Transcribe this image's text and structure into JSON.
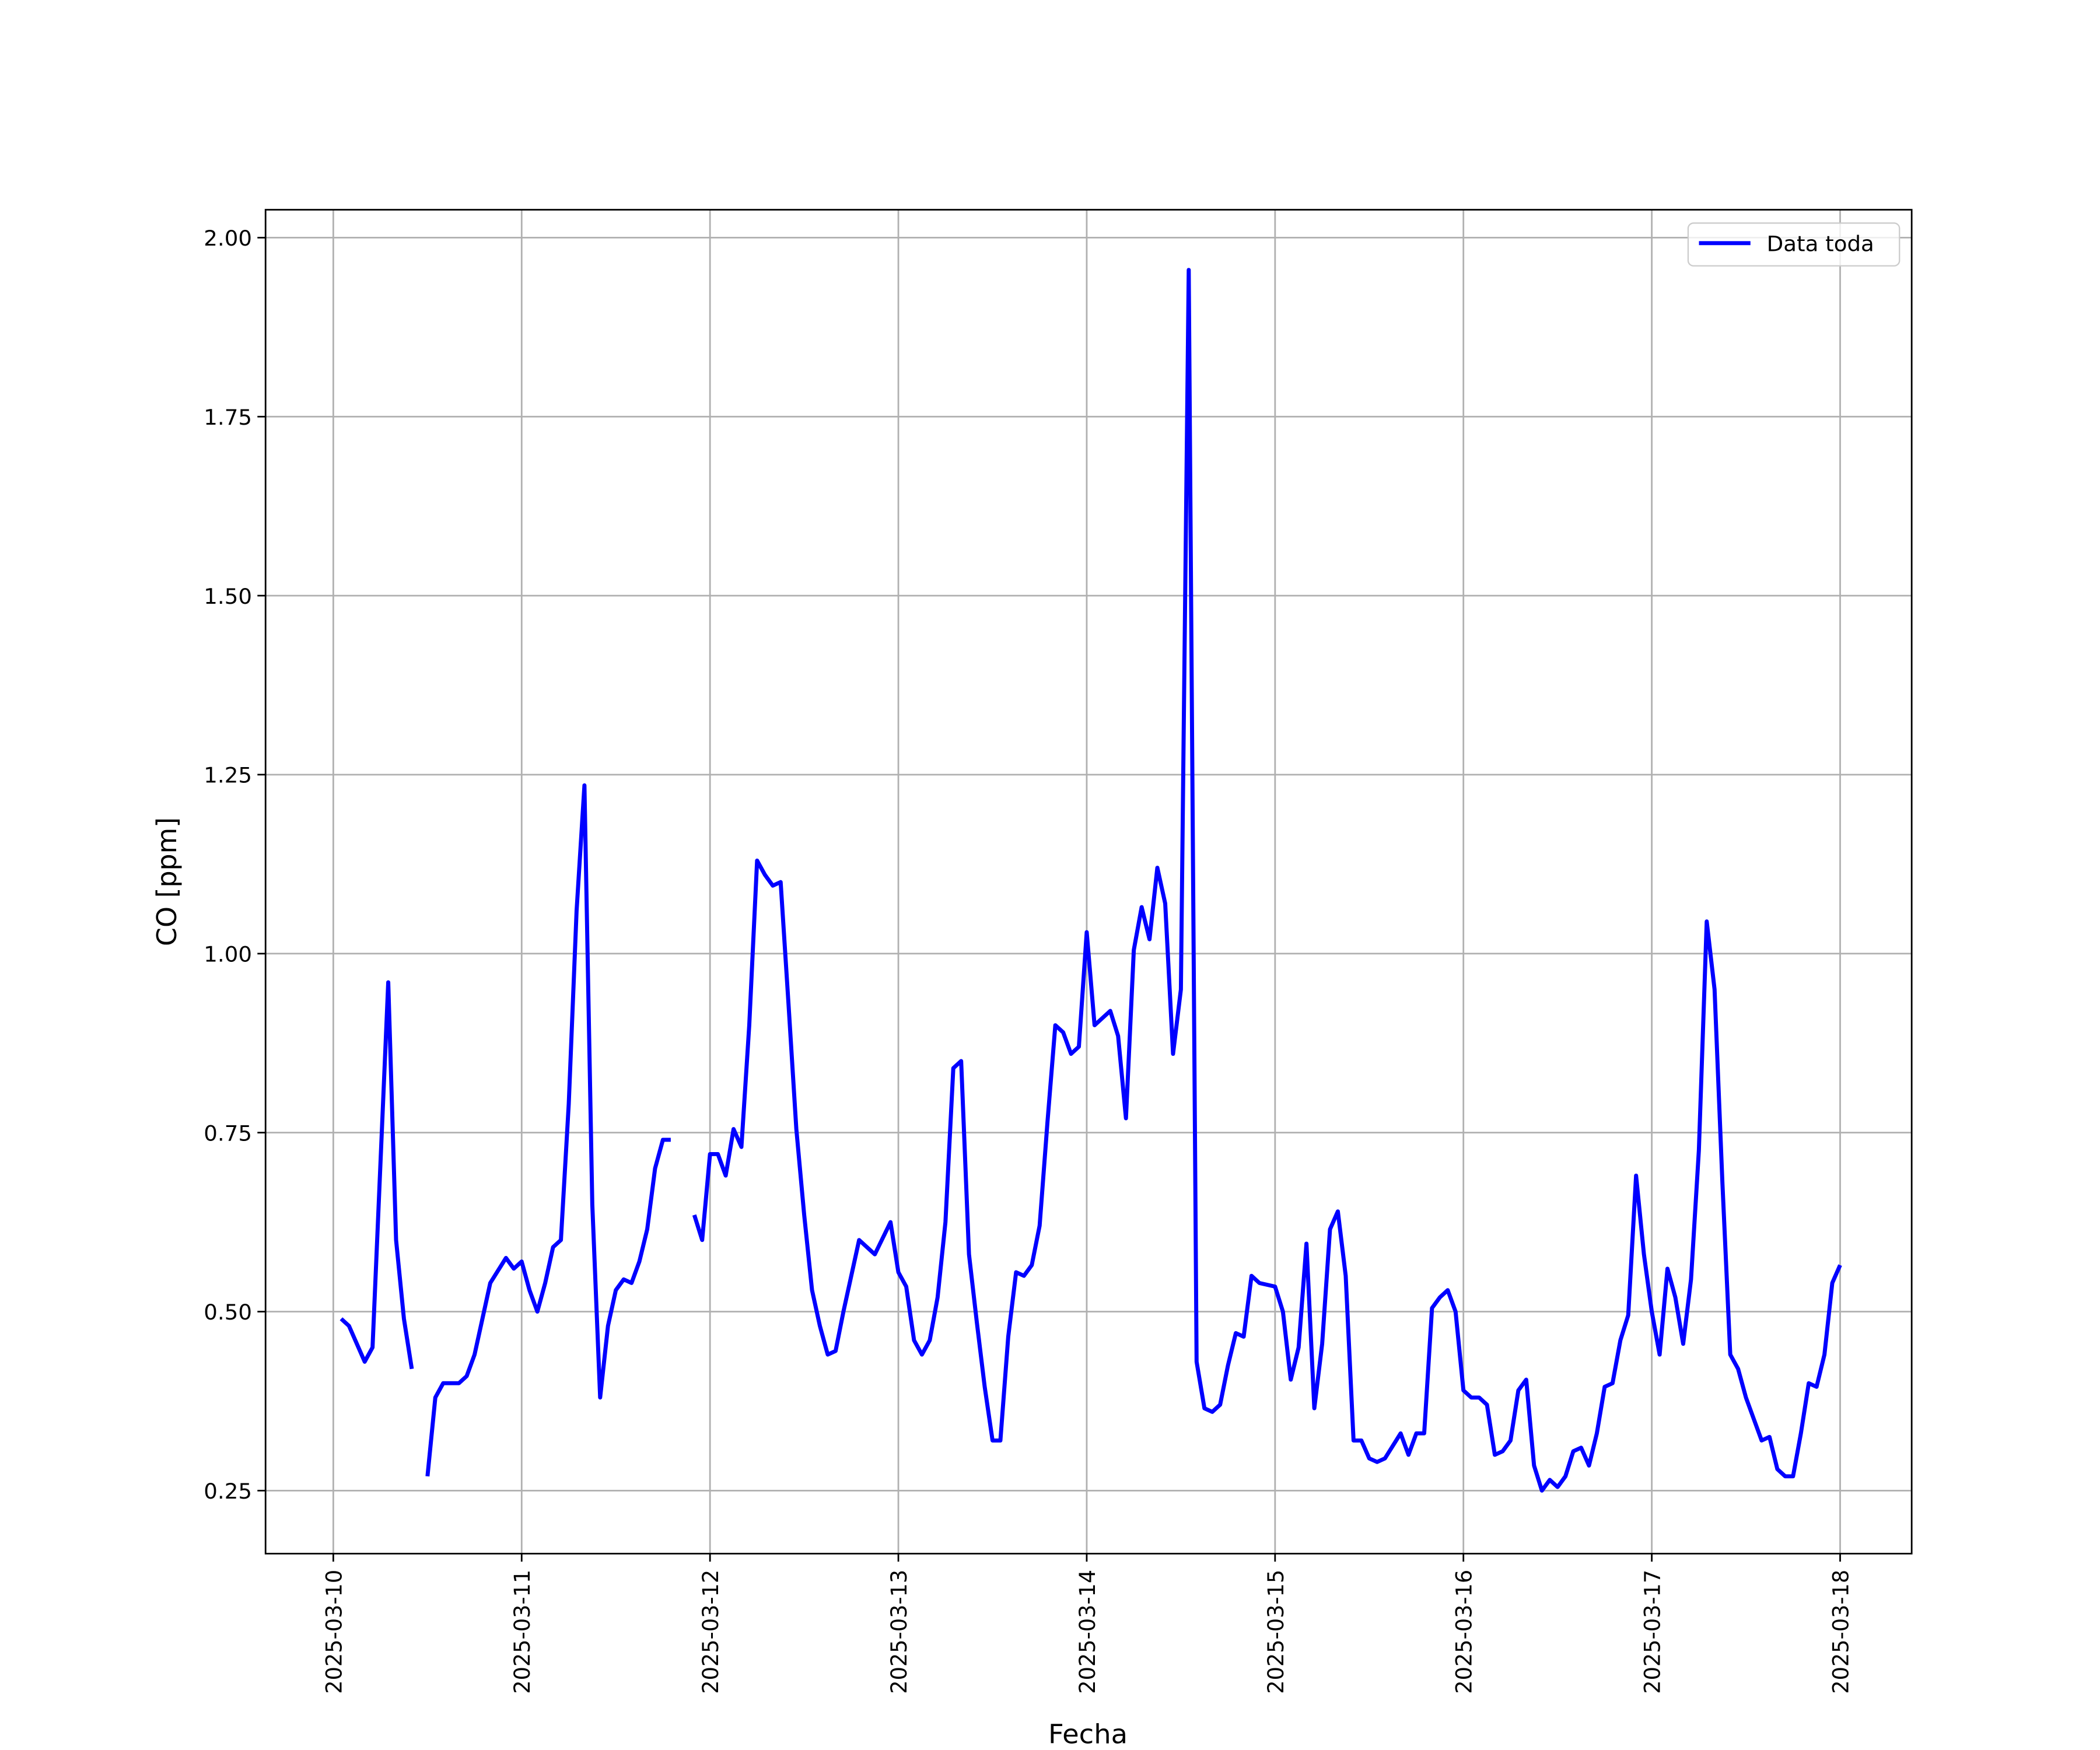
{
  "chart_data": {
    "type": "line",
    "x_label": "Fecha",
    "y_label": "CO [ppm]",
    "xlim": [
      "2025-03-09 15:22",
      "2025-03-18 09:07"
    ],
    "xticks": [
      "2025-03-10",
      "2025-03-11",
      "2025-03-12",
      "2025-03-13",
      "2025-03-14",
      "2025-03-15",
      "2025-03-16",
      "2025-03-17",
      "2025-03-18"
    ],
    "ylim": [
      0.162,
      2.039
    ],
    "yticks": [
      0.25,
      {
        "value": 0.5,
        "label": "0.50"
      },
      0.75,
      {
        "value": 1,
        "label": "1.00"
      },
      1.25,
      {
        "value": 1.5,
        "label": "1.50"
      },
      1.75,
      {
        "value": 2,
        "label": "2.00"
      }
    ],
    "grid": true,
    "legend": "upper right",
    "x": [
      "2025-03-10 01:00",
      "2025-03-10 02:00",
      "2025-03-10 04:00",
      "2025-03-10 05:00",
      "2025-03-10 07:00",
      "2025-03-10 08:00",
      "2025-03-10 09:00",
      "2025-03-10 10:00",
      "2025-03-10 11:00",
      "2025-03-10 12:00",
      "2025-03-10 13:00",
      "2025-03-10 14:00",
      "2025-03-10 15:00",
      "2025-03-10 16:00",
      "2025-03-10 17:00",
      "2025-03-10 18:00",
      "2025-03-10 20:00",
      "2025-03-10 22:00",
      "2025-03-10 23:00",
      "2025-03-11 00:00",
      "2025-03-11 01:00",
      "2025-03-11 02:00",
      "2025-03-11 03:00",
      "2025-03-11 04:00",
      "2025-03-11 05:00",
      "2025-03-11 06:00",
      "2025-03-11 07:00",
      "2025-03-11 08:00",
      "2025-03-11 09:00",
      "2025-03-11 10:00",
      "2025-03-11 11:00",
      "2025-03-11 12:00",
      "2025-03-11 13:00",
      "2025-03-11 14:00",
      "2025-03-11 15:00",
      "2025-03-11 16:00",
      "2025-03-11 17:00",
      "2025-03-11 18:00",
      "2025-03-11 19:00",
      "2025-03-11 20:00",
      "2025-03-11 22:00",
      "2025-03-11 23:00",
      "2025-03-12 00:00",
      "2025-03-12 01:00",
      "2025-03-12 02:00",
      "2025-03-12 03:00",
      "2025-03-12 04:00",
      "2025-03-12 05:00",
      "2025-03-12 06:00",
      "2025-03-12 07:00",
      "2025-03-12 08:00",
      "2025-03-12 09:00",
      "2025-03-12 10:00",
      "2025-03-12 11:00",
      "2025-03-12 12:00",
      "2025-03-12 13:00",
      "2025-03-12 14:00",
      "2025-03-12 15:00",
      "2025-03-12 16:00",
      "2025-03-12 17:00",
      "2025-03-12 19:00",
      "2025-03-12 21:00",
      "2025-03-12 23:00",
      "2025-03-13 00:00",
      "2025-03-13 01:00",
      "2025-03-13 02:00",
      "2025-03-13 03:00",
      "2025-03-13 04:00",
      "2025-03-13 05:00",
      "2025-03-13 06:00",
      "2025-03-13 07:00",
      "2025-03-13 08:00",
      "2025-03-13 09:00",
      "2025-03-13 10:00",
      "2025-03-13 11:00",
      "2025-03-13 12:00",
      "2025-03-13 13:00",
      "2025-03-13 14:00",
      "2025-03-13 15:00",
      "2025-03-13 16:00",
      "2025-03-13 17:00",
      "2025-03-13 18:00",
      "2025-03-13 19:00",
      "2025-03-13 20:00",
      "2025-03-13 21:00",
      "2025-03-13 22:00",
      "2025-03-13 23:00",
      "2025-03-14 00:00",
      "2025-03-14 01:00",
      "2025-03-14 02:00",
      "2025-03-14 03:00",
      "2025-03-14 04:00",
      "2025-03-14 05:00",
      "2025-03-14 06:00",
      "2025-03-14 07:00",
      "2025-03-14 08:00",
      "2025-03-14 09:00",
      "2025-03-14 10:00",
      "2025-03-14 11:00",
      "2025-03-14 12:00",
      "2025-03-14 13:00",
      "2025-03-14 14:00",
      "2025-03-14 15:00",
      "2025-03-14 16:00",
      "2025-03-14 17:00",
      "2025-03-14 18:00",
      "2025-03-14 19:00",
      "2025-03-14 20:00",
      "2025-03-14 21:00",
      "2025-03-14 22:00",
      "2025-03-15 00:00",
      "2025-03-15 01:00",
      "2025-03-15 02:00",
      "2025-03-15 03:00",
      "2025-03-15 04:00",
      "2025-03-15 05:00",
      "2025-03-15 06:00",
      "2025-03-15 07:00",
      "2025-03-15 08:00",
      "2025-03-15 09:00",
      "2025-03-15 10:00",
      "2025-03-15 11:00",
      "2025-03-15 12:00",
      "2025-03-15 13:00",
      "2025-03-15 14:00",
      "2025-03-15 16:00",
      "2025-03-15 17:00",
      "2025-03-15 18:00",
      "2025-03-15 19:00",
      "2025-03-15 20:00",
      "2025-03-15 21:00",
      "2025-03-15 22:00",
      "2025-03-15 23:00",
      "2025-03-16 00:00",
      "2025-03-16 01:00",
      "2025-03-16 02:00",
      "2025-03-16 03:00",
      "2025-03-16 04:00",
      "2025-03-16 05:00",
      "2025-03-16 06:00",
      "2025-03-16 07:00",
      "2025-03-16 08:00",
      "2025-03-16 09:00",
      "2025-03-16 10:00",
      "2025-03-16 11:00",
      "2025-03-16 12:00",
      "2025-03-16 13:00",
      "2025-03-16 14:00",
      "2025-03-16 15:00",
      "2025-03-16 16:00",
      "2025-03-16 17:00",
      "2025-03-16 18:00",
      "2025-03-16 19:00",
      "2025-03-16 20:00",
      "2025-03-16 21:00",
      "2025-03-16 22:00",
      "2025-03-16 23:00",
      "2025-03-17 00:00",
      "2025-03-17 01:00",
      "2025-03-17 02:00",
      "2025-03-17 03:00",
      "2025-03-17 04:00",
      "2025-03-17 05:00",
      "2025-03-17 06:00",
      "2025-03-17 07:00",
      "2025-03-17 08:00",
      "2025-03-17 09:00",
      "2025-03-17 10:00",
      "2025-03-17 11:00",
      "2025-03-17 12:00",
      "2025-03-17 13:00",
      "2025-03-17 14:00",
      "2025-03-17 15:00",
      "2025-03-17 16:00",
      "2025-03-17 17:00",
      "2025-03-17 18:00",
      "2025-03-17 19:00",
      "2025-03-17 20:00",
      "2025-03-17 21:00",
      "2025-03-17 22:00",
      "2025-03-17 23:00",
      "2025-03-18 00:00"
    ],
    "series": [
      {
        "name": "Data toda",
        "color": "#0000ff",
        "values": [
          0.49,
          0.48,
          0.43,
          0.45,
          0.96,
          0.6,
          0.49,
          0.42,
          null,
          0.27,
          0.38,
          0.4,
          0.4,
          0.4,
          0.41,
          0.44,
          0.54,
          0.575,
          0.56,
          0.57,
          0.53,
          0.5,
          0.54,
          0.59,
          0.6,
          0.79,
          1.06,
          1.235,
          0.65,
          0.38,
          0.48,
          0.53,
          0.545,
          0.54,
          0.57,
          0.615,
          0.7,
          0.74,
          0.74,
          null,
          0.635,
          0.6,
          0.72,
          0.72,
          0.69,
          0.755,
          0.73,
          0.9,
          1.13,
          1.11,
          1.095,
          1.1,
          0.93,
          0.755,
          0.635,
          0.53,
          0.48,
          0.44,
          0.445,
          0.5,
          0.6,
          0.58,
          0.625,
          0.555,
          0.535,
          0.46,
          0.44,
          0.46,
          0.52,
          0.625,
          0.84,
          0.85,
          0.58,
          0.485,
          0.395,
          0.32,
          0.32,
          0.465,
          0.555,
          0.55,
          0.565,
          0.62,
          0.765,
          0.9,
          0.89,
          0.86,
          0.87,
          1.03,
          0.9,
          0.91,
          0.92,
          0.885,
          0.77,
          1.005,
          1.065,
          1.02,
          1.12,
          1.07,
          0.86,
          0.95,
          1.955,
          0.43,
          0.365,
          0.36,
          0.37,
          0.425,
          0.47,
          0.465,
          0.55,
          0.54,
          0.535,
          0.5,
          0.405,
          0.45,
          0.595,
          0.365,
          0.455,
          0.615,
          0.64,
          0.55,
          0.32,
          0.32,
          0.295,
          0.29,
          0.295,
          0.33,
          0.3,
          0.33,
          0.33,
          0.505,
          0.52,
          0.53,
          0.5,
          0.39,
          0.38,
          0.38,
          0.37,
          0.3,
          0.305,
          0.32,
          0.39,
          0.405,
          0.285,
          0.25,
          0.265,
          0.255,
          0.27,
          0.305,
          0.31,
          0.285,
          0.33,
          0.395,
          0.4,
          0.46,
          0.495,
          0.69,
          0.58,
          0.5,
          0.44,
          0.56,
          0.52,
          0.455,
          0.545,
          0.725,
          1.045,
          0.95,
          0.68,
          0.44,
          0.42,
          0.38,
          0.35,
          0.32,
          0.325,
          0.28,
          0.27,
          0.27,
          0.33,
          0.4,
          0.395,
          0.44,
          0.54,
          0.565
        ]
      }
    ]
  }
}
